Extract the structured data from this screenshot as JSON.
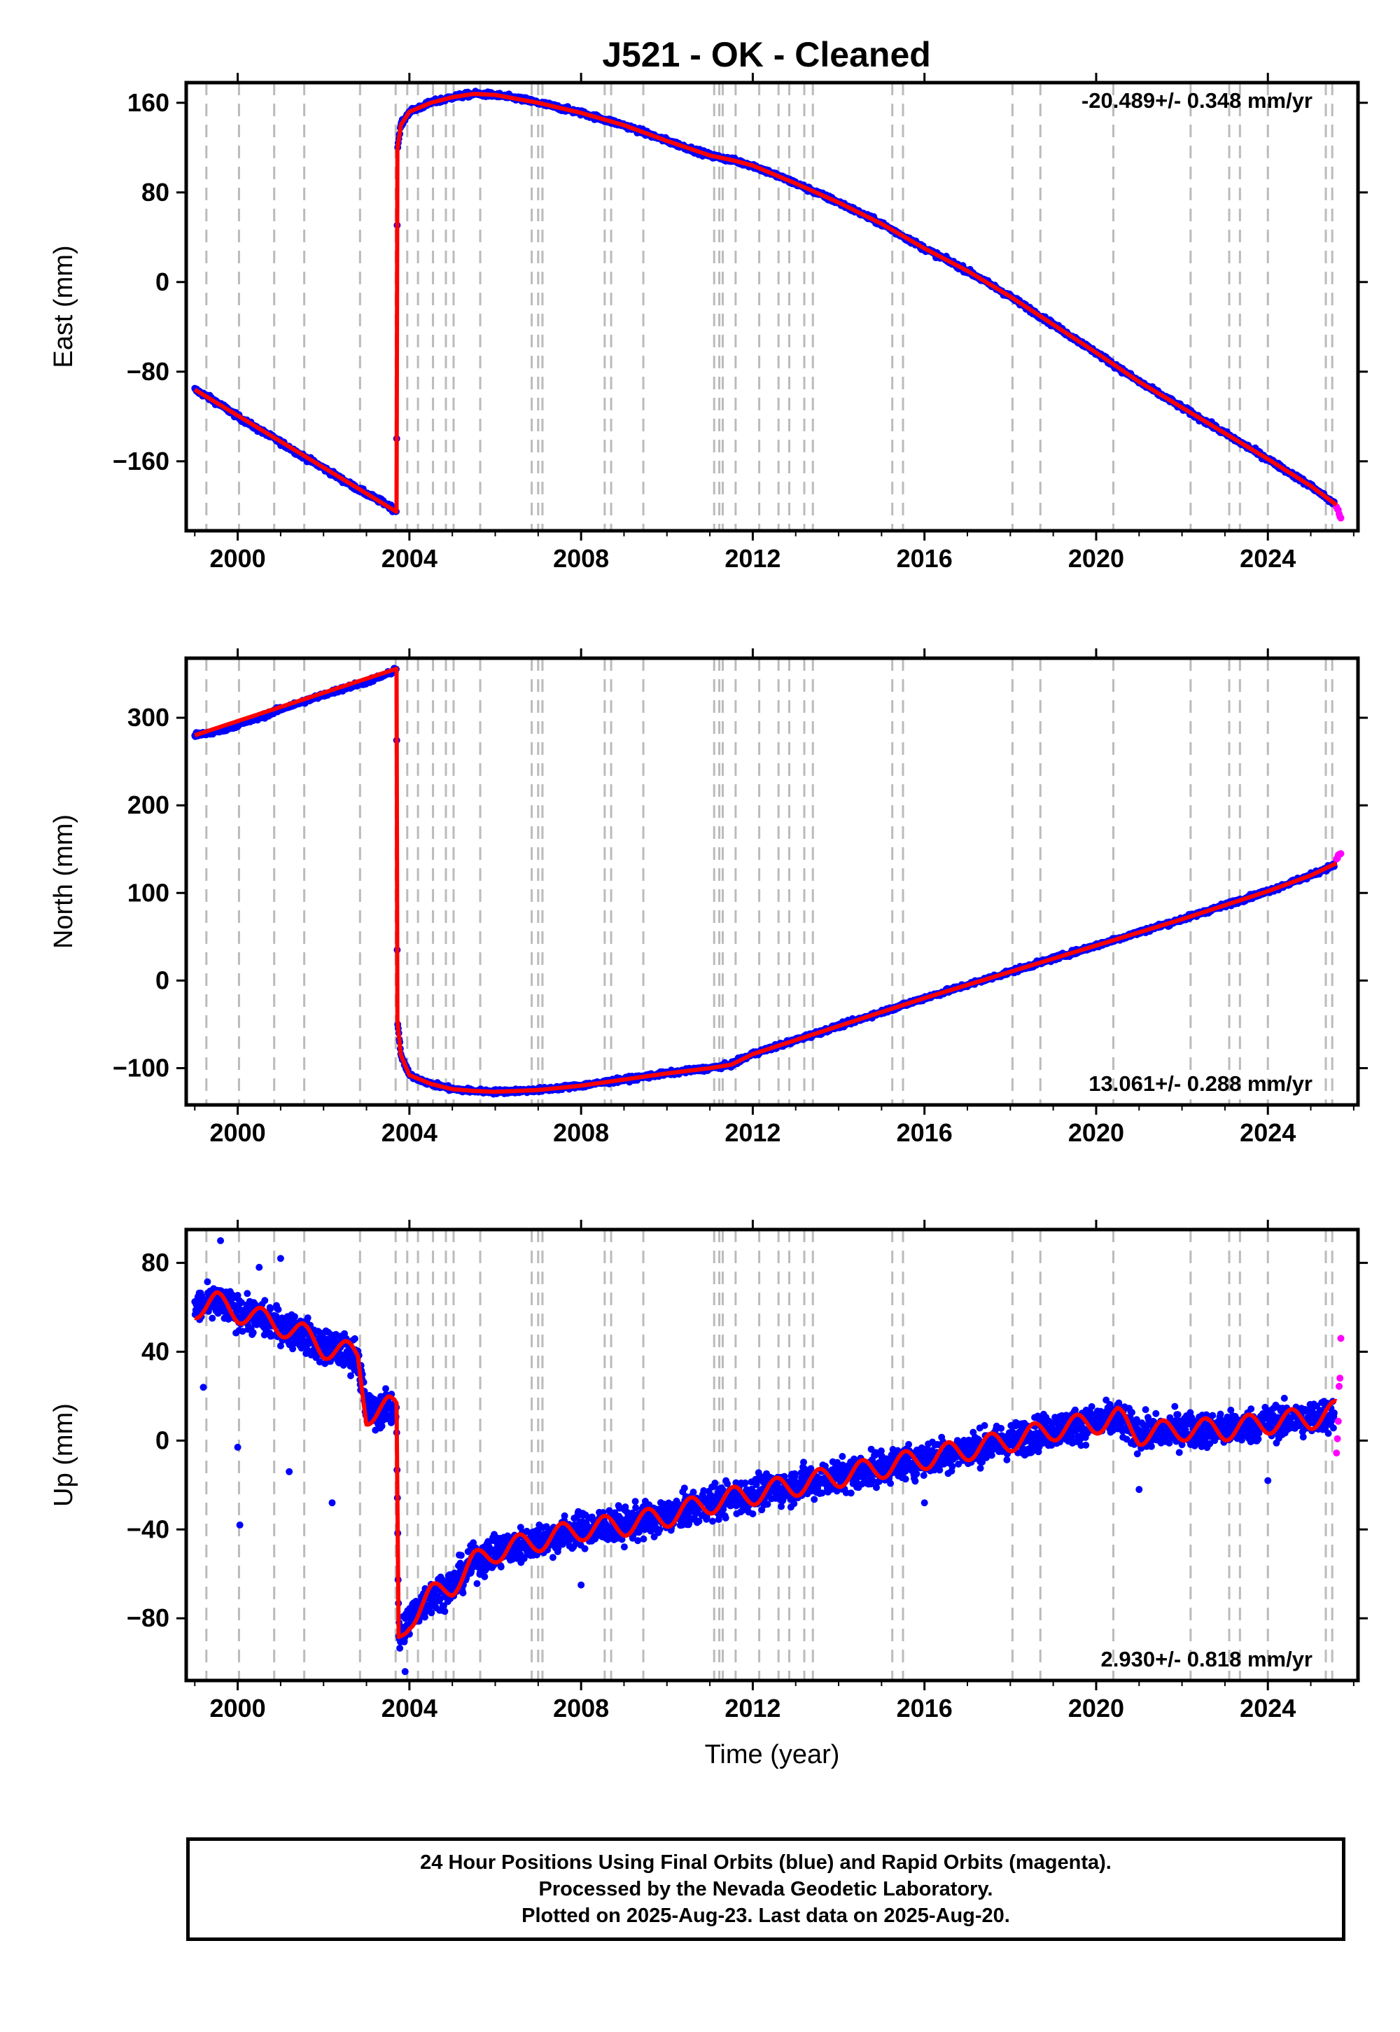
{
  "title": "J521  - OK - Cleaned",
  "colors": {
    "final": "#0000ff",
    "rapid": "#ff00ff",
    "model": "#ff0000",
    "event": "#bbbbbb",
    "axis": "#000000"
  },
  "chart_data": [
    {
      "type": "scatter",
      "component": "east",
      "ylabel": "East (mm)",
      "xlabel": "",
      "xlim": [
        1998.8,
        2026.1
      ],
      "ylim": [
        -222,
        178
      ],
      "yticks": [
        -160,
        -80,
        0,
        80,
        160
      ],
      "xticks": [
        2000,
        2004,
        2008,
        2012,
        2016,
        2020,
        2024
      ],
      "rate_label": "-20.489+/- 0.348 mm/yr",
      "rate_position": "top-right",
      "series": [
        {
          "name": "Final Orbits",
          "color": "#0000ff",
          "points": [
            [
              1999.0,
              -96
            ],
            [
              1999.5,
              -107
            ],
            [
              2000.0,
              -120
            ],
            [
              2000.5,
              -132
            ],
            [
              2001.0,
              -143
            ],
            [
              2001.5,
              -155
            ],
            [
              2002.0,
              -166
            ],
            [
              2002.5,
              -178
            ],
            [
              2003.0,
              -189
            ],
            [
              2003.5,
              -199
            ],
            [
              2003.7,
              -205
            ],
            [
              2003.72,
              118
            ],
            [
              2003.8,
              140
            ],
            [
              2004.0,
              152
            ],
            [
              2004.5,
              160
            ],
            [
              2005.0,
              165
            ],
            [
              2005.5,
              168
            ],
            [
              2006.0,
              167
            ],
            [
              2006.5,
              164
            ],
            [
              2007.0,
              160
            ],
            [
              2008.0,
              151
            ],
            [
              2009.0,
              140
            ],
            [
              2010.0,
              126
            ],
            [
              2011.0,
              113
            ],
            [
              2011.5,
              109
            ],
            [
              2012.0,
              104
            ],
            [
              2013.0,
              88
            ],
            [
              2014.0,
              71
            ],
            [
              2015.0,
              52
            ],
            [
              2016.0,
              30
            ],
            [
              2017.0,
              10
            ],
            [
              2018.0,
              -13
            ],
            [
              2019.0,
              -38
            ],
            [
              2020.0,
              -63
            ],
            [
              2021.0,
              -89
            ],
            [
              2022.0,
              -112
            ],
            [
              2023.0,
              -135
            ],
            [
              2024.0,
              -158
            ],
            [
              2025.0,
              -182
            ],
            [
              2025.55,
              -198
            ]
          ]
        },
        {
          "name": "Rapid Orbits",
          "color": "#ff00ff",
          "points": [
            [
              2025.6,
              -200
            ],
            [
              2025.65,
              -205
            ],
            [
              2025.7,
              -210
            ]
          ]
        },
        {
          "name": "Model",
          "color": "#ff0000",
          "points": [
            [
              1999.0,
              -96
            ],
            [
              2003.7,
              -205
            ],
            [
              2003.72,
              118
            ],
            [
              2003.8,
              140
            ],
            [
              2004.0,
              152
            ],
            [
              2004.5,
              160
            ],
            [
              2005.0,
              165
            ],
            [
              2005.5,
              168
            ],
            [
              2006.0,
              167
            ],
            [
              2007.0,
              160
            ],
            [
              2008.0,
              151
            ],
            [
              2009.0,
              140
            ],
            [
              2010.0,
              126
            ],
            [
              2011.0,
              113
            ],
            [
              2011.5,
              109
            ],
            [
              2012.0,
              104
            ],
            [
              2013.0,
              88
            ],
            [
              2014.0,
              71
            ],
            [
              2015.0,
              52
            ],
            [
              2016.0,
              30
            ],
            [
              2017.0,
              10
            ],
            [
              2018.0,
              -13
            ],
            [
              2019.0,
              -38
            ],
            [
              2020.0,
              -63
            ],
            [
              2021.0,
              -89
            ],
            [
              2022.0,
              -112
            ],
            [
              2023.0,
              -135
            ],
            [
              2024.0,
              -158
            ],
            [
              2025.0,
              -182
            ],
            [
              2025.6,
              -199
            ]
          ]
        }
      ]
    },
    {
      "type": "scatter",
      "component": "north",
      "ylabel": "North (mm)",
      "xlabel": "",
      "xlim": [
        1998.8,
        2026.1
      ],
      "ylim": [
        -142,
        368
      ],
      "yticks": [
        -100,
        0,
        100,
        200,
        300
      ],
      "xticks": [
        2000,
        2004,
        2008,
        2012,
        2016,
        2020,
        2024
      ],
      "rate_label": "13.061+/- 0.288 mm/yr",
      "rate_position": "bottom-right",
      "series": [
        {
          "name": "Final Orbits",
          "color": "#0000ff",
          "points": [
            [
              1999.0,
              280
            ],
            [
              1999.5,
              284
            ],
            [
              2000.0,
              292
            ],
            [
              2000.5,
              300
            ],
            [
              2001.0,
              310
            ],
            [
              2001.5,
              318
            ],
            [
              2002.0,
              326
            ],
            [
              2002.5,
              334
            ],
            [
              2003.0,
              341
            ],
            [
              2003.5,
              350
            ],
            [
              2003.7,
              356
            ],
            [
              2003.72,
              -45
            ],
            [
              2003.8,
              -85
            ],
            [
              2004.0,
              -108
            ],
            [
              2004.5,
              -118
            ],
            [
              2005.0,
              -124
            ],
            [
              2005.5,
              -126
            ],
            [
              2006.0,
              -127
            ],
            [
              2006.5,
              -126
            ],
            [
              2007.0,
              -125
            ],
            [
              2008.0,
              -120
            ],
            [
              2009.0,
              -113
            ],
            [
              2010.0,
              -106
            ],
            [
              2011.0,
              -100
            ],
            [
              2011.5,
              -96
            ],
            [
              2012.0,
              -84
            ],
            [
              2013.0,
              -68
            ],
            [
              2014.0,
              -52
            ],
            [
              2015.0,
              -36
            ],
            [
              2016.0,
              -20
            ],
            [
              2017.0,
              -5
            ],
            [
              2018.0,
              10
            ],
            [
              2019.0,
              25
            ],
            [
              2020.0,
              40
            ],
            [
              2021.0,
              55
            ],
            [
              2022.0,
              70
            ],
            [
              2023.0,
              86
            ],
            [
              2024.0,
              102
            ],
            [
              2025.0,
              120
            ],
            [
              2025.55,
              132
            ]
          ]
        },
        {
          "name": "Rapid Orbits",
          "color": "#ff00ff",
          "points": [
            [
              2025.6,
              138
            ],
            [
              2025.65,
              142
            ],
            [
              2025.7,
              146
            ]
          ]
        },
        {
          "name": "Model",
          "color": "#ff0000",
          "points": [
            [
              1999.0,
              280
            ],
            [
              2003.7,
              356
            ],
            [
              2003.72,
              -45
            ],
            [
              2003.8,
              -85
            ],
            [
              2004.0,
              -108
            ],
            [
              2004.5,
              -118
            ],
            [
              2005.0,
              -124
            ],
            [
              2005.5,
              -126
            ],
            [
              2006.0,
              -127
            ],
            [
              2007.0,
              -125
            ],
            [
              2008.0,
              -120
            ],
            [
              2009.0,
              -113
            ],
            [
              2010.0,
              -106
            ],
            [
              2011.0,
              -100
            ],
            [
              2011.5,
              -96
            ],
            [
              2012.0,
              -84
            ],
            [
              2013.0,
              -68
            ],
            [
              2014.0,
              -52
            ],
            [
              2015.0,
              -36
            ],
            [
              2016.0,
              -20
            ],
            [
              2017.0,
              -5
            ],
            [
              2018.0,
              10
            ],
            [
              2019.0,
              25
            ],
            [
              2020.0,
              40
            ],
            [
              2021.0,
              55
            ],
            [
              2022.0,
              70
            ],
            [
              2023.0,
              86
            ],
            [
              2024.0,
              102
            ],
            [
              2025.0,
              120
            ],
            [
              2025.6,
              134
            ]
          ]
        }
      ]
    },
    {
      "type": "scatter",
      "component": "up",
      "ylabel": "Up (mm)",
      "xlabel": "Time (year)",
      "xlim": [
        1998.8,
        2026.1
      ],
      "ylim": [
        -108,
        95
      ],
      "yticks": [
        -80,
        -40,
        0,
        40,
        80
      ],
      "xticks": [
        2000,
        2004,
        2008,
        2012,
        2016,
        2020,
        2024
      ],
      "rate_label": "2.930+/- 0.818 mm/yr",
      "rate_position": "bottom-right",
      "series": [
        {
          "name": "Final Orbits",
          "color": "#0000ff",
          "points": [
            [
              1999.0,
              60
            ],
            [
              1999.5,
              62
            ],
            [
              2000.0,
              58
            ],
            [
              2000.5,
              55
            ],
            [
              2001.0,
              52
            ],
            [
              2001.5,
              48
            ],
            [
              2002.0,
              42
            ],
            [
              2002.5,
              40
            ],
            [
              2002.8,
              38
            ],
            [
              2003.0,
              12
            ],
            [
              2003.5,
              15
            ],
            [
              2003.7,
              14
            ],
            [
              2003.75,
              -90
            ],
            [
              2004.0,
              -80
            ],
            [
              2004.5,
              -70
            ],
            [
              2005.0,
              -65
            ],
            [
              2005.5,
              -55
            ],
            [
              2006.0,
              -50
            ],
            [
              2007.0,
              -45
            ],
            [
              2008.0,
              -40
            ],
            [
              2009.0,
              -38
            ],
            [
              2010.0,
              -34
            ],
            [
              2011.0,
              -28
            ],
            [
              2012.0,
              -24
            ],
            [
              2013.0,
              -20
            ],
            [
              2014.0,
              -16
            ],
            [
              2015.0,
              -12
            ],
            [
              2016.0,
              -8
            ],
            [
              2017.0,
              -4
            ],
            [
              2018.0,
              0
            ],
            [
              2019.0,
              5
            ],
            [
              2020.0,
              8
            ],
            [
              2020.5,
              10
            ],
            [
              2021.0,
              3
            ],
            [
              2022.0,
              5
            ],
            [
              2023.0,
              5
            ],
            [
              2024.0,
              8
            ],
            [
              2025.0,
              10
            ],
            [
              2025.55,
              12
            ]
          ]
        },
        {
          "name": "Rapid Orbits",
          "color": "#ff00ff",
          "points": [
            [
              2025.6,
              -4
            ],
            [
              2025.62,
              5
            ],
            [
              2025.65,
              15
            ],
            [
              2025.68,
              30
            ],
            [
              2025.7,
              45
            ]
          ]
        },
        {
          "name": "Model",
          "color": "#ff0000",
          "points": [
            [
              1999.0,
              60
            ],
            [
              1999.5,
              62
            ],
            [
              2000.0,
              58
            ],
            [
              2000.5,
              55
            ],
            [
              2001.0,
              52
            ],
            [
              2001.5,
              48
            ],
            [
              2002.0,
              42
            ],
            [
              2002.5,
              40
            ],
            [
              2002.8,
              38
            ],
            [
              2003.0,
              12
            ],
            [
              2003.5,
              15
            ],
            [
              2003.7,
              14
            ],
            [
              2003.75,
              -90
            ],
            [
              2004.0,
              -80
            ],
            [
              2004.5,
              -70
            ],
            [
              2005.0,
              -65
            ],
            [
              2005.5,
              -55
            ],
            [
              2006.0,
              -50
            ],
            [
              2007.0,
              -45
            ],
            [
              2008.0,
              -40
            ],
            [
              2009.0,
              -38
            ],
            [
              2010.0,
              -34
            ],
            [
              2011.0,
              -28
            ],
            [
              2012.0,
              -24
            ],
            [
              2013.0,
              -20
            ],
            [
              2014.0,
              -16
            ],
            [
              2015.0,
              -12
            ],
            [
              2016.0,
              -8
            ],
            [
              2017.0,
              -4
            ],
            [
              2018.0,
              0
            ],
            [
              2019.0,
              5
            ],
            [
              2020.0,
              8
            ],
            [
              2020.5,
              10
            ],
            [
              2021.0,
              3
            ],
            [
              2022.0,
              5
            ],
            [
              2023.0,
              5
            ],
            [
              2024.0,
              8
            ],
            [
              2025.0,
              10
            ],
            [
              2025.6,
              13
            ]
          ]
        }
      ]
    }
  ],
  "events": [
    1999.27,
    2000.03,
    2000.85,
    2001.55,
    2002.85,
    2003.68,
    2003.95,
    2004.2,
    2004.55,
    2004.85,
    2005.03,
    2005.65,
    2006.85,
    2007.0,
    2007.1,
    2008.55,
    2008.7,
    2009.45,
    2011.1,
    2011.22,
    2011.3,
    2011.6,
    2012.15,
    2012.6,
    2012.85,
    2013.2,
    2013.4,
    2015.25,
    2015.5,
    2018.05,
    2018.7,
    2020.4,
    2022.2,
    2023.1,
    2023.35,
    2024.0,
    2025.35,
    2025.5
  ],
  "caption": {
    "line1": "24 Hour Positions Using Final Orbits (blue) and Rapid Orbits (magenta).",
    "line2": "Processed by the Nevada Geodetic Laboratory.",
    "line3": "Plotted on 2025-Aug-23. Last data on 2025-Aug-20."
  }
}
